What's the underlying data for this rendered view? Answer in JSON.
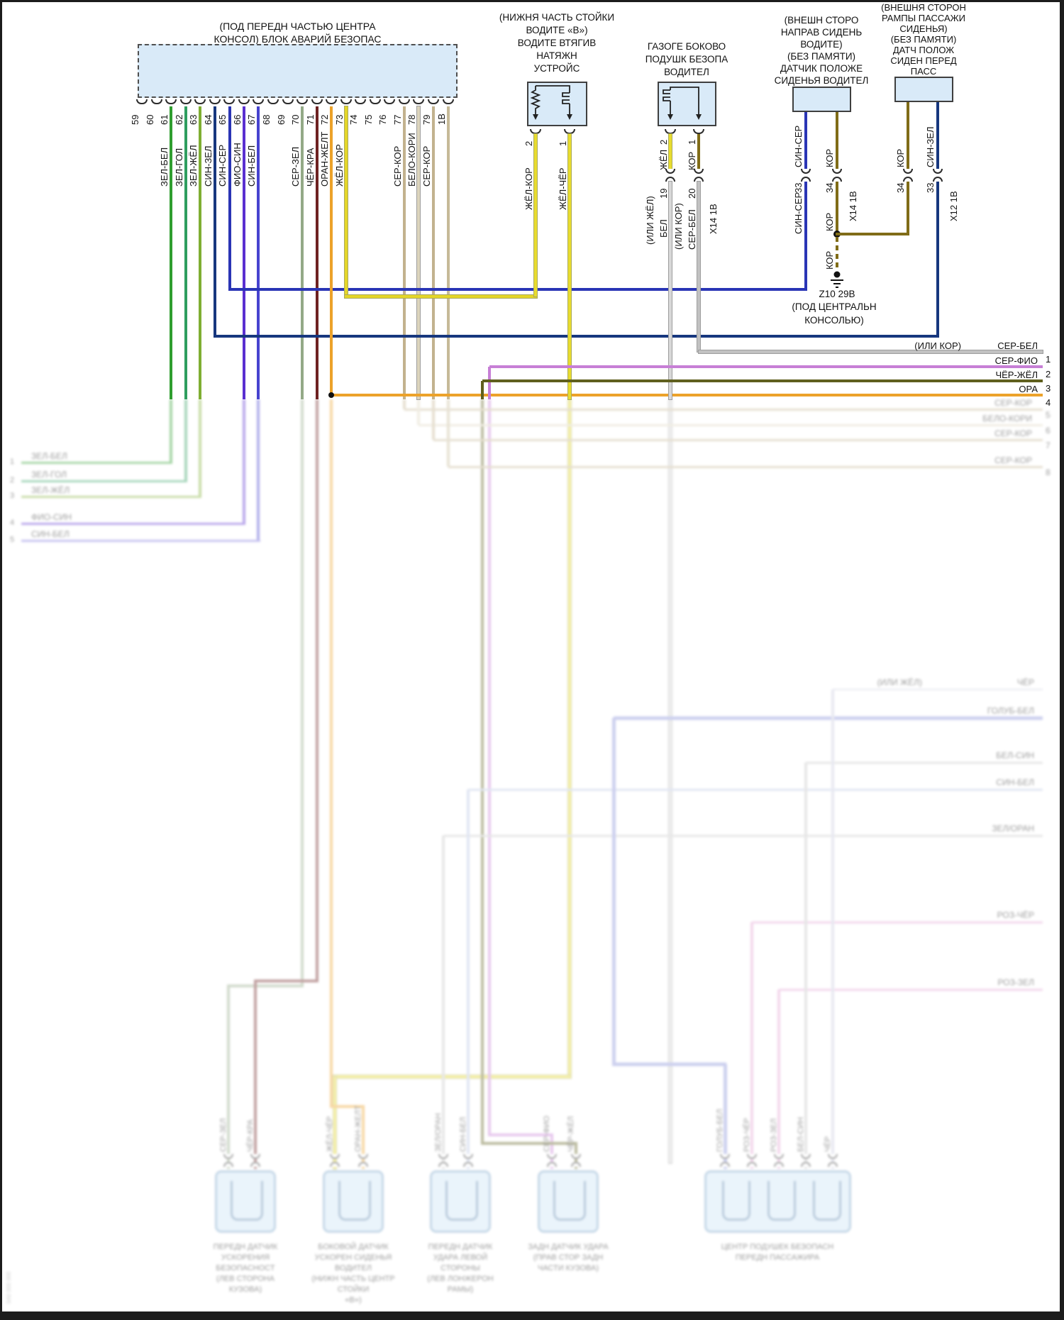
{
  "page": {
    "watermark": "0А0 000 000"
  },
  "main_block": {
    "title": [
      "(ПОД ПЕРЕДН ЧАСТЬЮ ЦЕНТРА",
      "КОНСОЛ) БЛОК АВАРИЙ БЕЗОПАС"
    ],
    "pins": [
      "59",
      "60",
      "61",
      "62",
      "63",
      "64",
      "65",
      "66",
      "67",
      "68",
      "69",
      "70",
      "71",
      "72",
      "73",
      "74",
      "75",
      "76",
      "77",
      "78",
      "79",
      "1В"
    ],
    "wires": [
      {
        "pin": "61",
        "label": "ЗЕЛ-БЕЛ",
        "color": "#2f9e2f"
      },
      {
        "pin": "62",
        "label": "ЗЕЛ-ГОЛ",
        "color": "#2f9e5f"
      },
      {
        "pin": "63",
        "label": "ЗЕЛ-ЖЁЛ",
        "color": "#7fae32"
      },
      {
        "pin": "64",
        "label": "СИН-ЗЕЛ",
        "color": "#17377e"
      },
      {
        "pin": "65",
        "label": "СИН-СЕР",
        "color": "#2a35b5"
      },
      {
        "pin": "66",
        "label": "ФИО-СИН",
        "color": "#5a2fd0"
      },
      {
        "pin": "67",
        "label": "СИН-БЕЛ",
        "color": "#4743cf"
      },
      {
        "pin": "70",
        "label": "СЕР-ЗЕЛ",
        "color": "#93a987"
      },
      {
        "pin": "71",
        "label": "ЧЁР-КРА",
        "color": "#6e2222"
      },
      {
        "pin": "72",
        "label": "ОРАН-ЖЕЛТ",
        "color": "#eca22a"
      },
      {
        "pin": "73",
        "label": "ЖЁЛ-КОР",
        "color": "#e4d629"
      },
      {
        "pin": "77",
        "label": "СЕР-КОР",
        "color": "#c2b28e"
      },
      {
        "pin": "78",
        "label": "БЕЛО-КОРИ",
        "color": "#dcd4bc"
      },
      {
        "pin": "79",
        "label": "СЕР-КОР",
        "color": "#c2b28e"
      },
      {
        "pin": "1В",
        "label": "",
        "color": "#c6ba98"
      }
    ]
  },
  "pretensioner": {
    "title": [
      "(НИЖНЯ ЧАСТЬ СТОЙКИ",
      "ВОДИТЕ «В»)",
      "ВОДИТЕ ВТЯГИВ",
      "НАТЯЖН",
      "УСТРОЙС"
    ],
    "pins": [
      {
        "num": "2",
        "label": "ЖЁЛ-КОР"
      },
      {
        "num": "1",
        "label": "ЖЁЛ-ЧЁР"
      }
    ],
    "wire_color": "#e8dc2e"
  },
  "airbag": {
    "title": [
      "ГАЗОГЕ БОКОВО",
      "ПОДУШК БЕЗОПА",
      "ВОДИТЕЛ"
    ],
    "pins": [
      {
        "num": "2",
        "label": "ЖЁЛ",
        "alt": "(ИЛИ ЖЁЛ)",
        "below_label": "БЕЛ",
        "below_num": "19"
      },
      {
        "num": "1",
        "label": "КОР",
        "alt": "(ИЛИ КОР)",
        "below_label": "СЕР-БЕЛ",
        "below_num": "20"
      }
    ],
    "connector": "X14 1В"
  },
  "driver_sensor": {
    "title": [
      "(ВНЕШН СТОРО",
      "НАПРАВ СИДЕНЬ",
      "ВОДИТЕ)",
      "(БЕЗ ПАМЯТИ)",
      "ДАТЧИК ПОЛОЖЕ",
      "СИДЕНЬЯ ВОДИТЕЛ"
    ],
    "wires": [
      {
        "label": "СИН-СЕР",
        "pin": "33",
        "below_label": "СИН-СЕР",
        "color": "#2a35b5"
      },
      {
        "label": "КОР",
        "pin": "34",
        "below_label": "КОР",
        "color": "#806c18"
      }
    ],
    "connector": "X14 1В"
  },
  "passenger_sensor": {
    "title": [
      "(ВНЕШНЯ СТОРОН",
      "РАМПЫ ПАССАЖИ",
      "СИДЕНЬЯ)",
      "(БЕЗ ПАМЯТИ)",
      "ДАТЧ ПОЛОЖ",
      "СИДЕН ПЕРЕД",
      "ПАСС"
    ],
    "wires": [
      {
        "label": "КОР",
        "pin": "34",
        "color": "#806c18"
      },
      {
        "label": "СИН-ЗЕЛ",
        "pin": "33",
        "color": "#17377e"
      }
    ],
    "connector": "X12 1В"
  },
  "ground": {
    "wire_label": "КОР",
    "id": "Z10 29В",
    "location": [
      "(ПОД ЦЕНТРАЛЬН",
      "КОНСОЛЬЮ)"
    ]
  },
  "right_stubs": [
    {
      "num": "1",
      "prefix": "(ИЛИ КОР)",
      "label": "СЕР-БЕЛ",
      "color": "#c2c2c2"
    },
    {
      "num": "2",
      "prefix": "",
      "label": "СЕР-ФИО",
      "color": "#c77fd6"
    },
    {
      "num": "3",
      "prefix": "",
      "label": "ЧЁР-ЖЁЛ",
      "color": "#5f5f1e"
    },
    {
      "num": "4",
      "prefix": "",
      "label": "ОРА",
      "color": "#eca22a"
    }
  ],
  "right_stubs_faded": [
    {
      "num": "5",
      "label": "СЕР-КОР",
      "color": "#c2b28e"
    },
    {
      "num": "6",
      "label": "БЕЛО-КОРИ",
      "color": "#dcd4bc"
    },
    {
      "num": "7",
      "label": "СЕР-КОР",
      "color": "#c2b28e"
    },
    {
      "num": "8",
      "label": "СЕР-КОР",
      "color": "#c2b28e"
    }
  ],
  "right_stubs_deep": [
    {
      "prefix": "(ИЛИ ЖЁЛ)",
      "label": "ЧЁР",
      "color": "#c8cade"
    },
    {
      "prefix": "",
      "label": "ГОЛУБ-БЕЛ",
      "color": "#8890d8"
    },
    {
      "prefix": "",
      "label": "БЕЛ-СИН",
      "color": "#c4c4c4"
    },
    {
      "prefix": "",
      "label": "СИН-БЕЛ",
      "color": "#b8c4e2"
    },
    {
      "prefix": "",
      "label": "ЗЕЛ/ОРАН",
      "color": "#c6c6c6"
    },
    {
      "prefix": "",
      "label": "РОЗ-ЧЁР",
      "color": "#e2a0d2"
    },
    {
      "prefix": "",
      "label": "РОЗ-ЗЕЛ",
      "color": "#e2a0d2"
    }
  ],
  "left_stubs": [
    {
      "num": "1",
      "label": "ЗЕЛ-БЕЛ",
      "color": "#2f9e2f"
    },
    {
      "num": "2",
      "label": "ЗЕЛ-ГОЛ",
      "color": "#2f9e5f"
    },
    {
      "num": "3",
      "label": "ЗЕЛ-ЖЁЛ",
      "color": "#7fae32"
    },
    {
      "num": "4",
      "label": "ФИО-СИН",
      "color": "#5a2fd0"
    },
    {
      "num": "5",
      "label": "СИН-БЕЛ",
      "color": "#7a70dc"
    }
  ],
  "bottom_connectors": [
    {
      "wire_labels": [
        "СЕР-ЗЕЛ",
        "ЧЁР-КРА"
      ],
      "caption": [
        "ПЕРЕДН ДАТЧИК",
        "УСКОРЕНИЯ",
        "БЕЗОПАСНОСТ",
        "(ЛЕВ СТОРОНА",
        "КУЗОВА)"
      ]
    },
    {
      "wire_labels": [
        "ЖЁЛ-ЧЁР",
        "ОРАН-ЖЕЛТ"
      ],
      "caption": [
        "БОКОВОЙ ДАТЧИК",
        "УСКОРЕН СИДЕНЬЯ",
        "ВОДИТЕЛ",
        "(НИЖН ЧАСТЬ ЦЕНТР",
        "СТОЙКИ",
        "«В»)"
      ]
    },
    {
      "wire_labels": [
        "ЗЕЛ/ОРАН",
        "СИН-БЕЛ"
      ],
      "caption": [
        "ПЕРЕДН ДАТЧИК",
        "УДАРА ЛЕВОЙ",
        "СТОРОНЫ",
        "(ЛЕВ ЛОНЖЕРОН",
        "РАМЫ)"
      ]
    },
    {
      "wire_labels": [
        "СЕР-ФИО",
        "ЧЁР-ЖЁЛ"
      ],
      "caption": [
        "ЗАДН ДАТЧИК УДАРА",
        "(ПРАВ СТОР ЗАДН",
        "ЧАСТИ КУЗОВА)"
      ]
    },
    {
      "wire_labels": [
        "ГОЛУБ-БЕЛ",
        "РОЗ-ЧЁР",
        "РОЗ-ЗЕЛ",
        "БЕЛ-СИН",
        "ЧЁР"
      ],
      "caption": [
        "ЦЕНТР ПОДУШЕК БЕЗОПАСН",
        "ПЕРЕДН ПАССАЖИРА"
      ]
    }
  ]
}
